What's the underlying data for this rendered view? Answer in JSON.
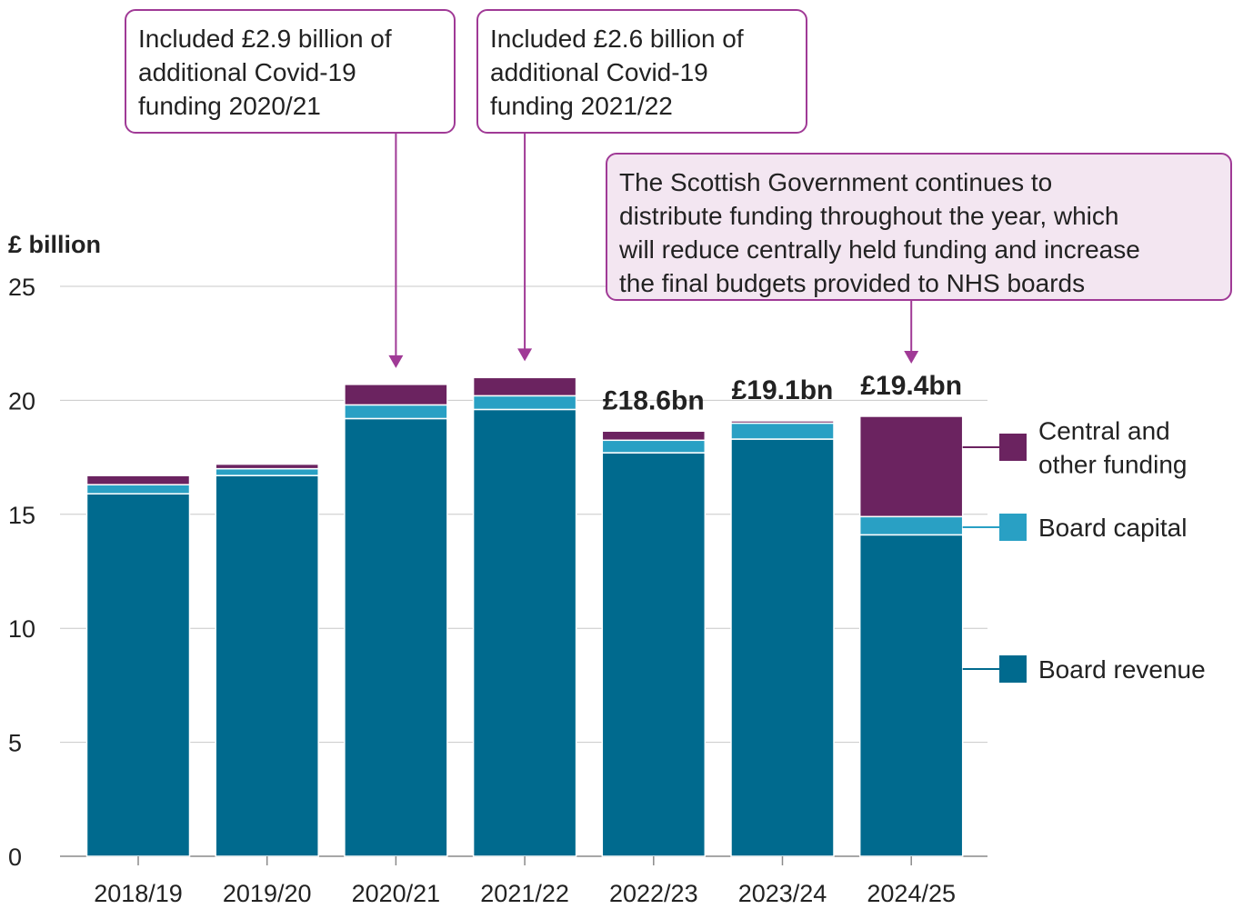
{
  "chart_data": {
    "type": "bar",
    "stacked": true,
    "ylabel": "£ billion",
    "ylim": [
      0,
      25
    ],
    "yticks": [
      0,
      5,
      10,
      15,
      20,
      25
    ],
    "grid": true,
    "legend_position": "right",
    "categories": [
      "2018/19",
      "2019/20",
      "2020/21",
      "2021/22",
      "2022/23",
      "2023/24",
      "2024/25"
    ],
    "series": [
      {
        "name": "Board revenue",
        "values": [
          15.9,
          16.7,
          19.2,
          19.6,
          17.7,
          18.3,
          14.1
        ]
      },
      {
        "name": "Board capital",
        "values": [
          0.4,
          0.3,
          0.6,
          0.6,
          0.55,
          0.7,
          0.8
        ]
      },
      {
        "name": "Central and other funding",
        "values": [
          0.4,
          0.2,
          0.9,
          0.8,
          0.4,
          0.1,
          4.4
        ]
      }
    ],
    "total_labels": [
      {
        "category": "2022/23",
        "text": "£18.6bn"
      },
      {
        "category": "2023/24",
        "text": "£19.1bn"
      },
      {
        "category": "2024/25",
        "text": "£19.4bn"
      }
    ],
    "annotations": [
      {
        "category": "2020/21",
        "lines": [
          "Included £2.9 billion of",
          "additional Covid-19",
          "funding 2020/21"
        ]
      },
      {
        "category": "2021/22",
        "lines": [
          "Included £2.6 billion of",
          "additional Covid-19",
          "funding 2021/22"
        ]
      },
      {
        "category": "2024/25",
        "lines": [
          "The Scottish Government continues to",
          "distribute funding throughout the year, which",
          "will reduce centrally held funding and increase",
          "the final budgets provided to NHS boards"
        ]
      }
    ],
    "legend": [
      {
        "series": "Central and other funding",
        "lines": [
          "Central and",
          "other funding"
        ]
      },
      {
        "series": "Board capital",
        "lines": [
          "Board capital"
        ]
      },
      {
        "series": "Board revenue",
        "lines": [
          "Board revenue"
        ]
      }
    ],
    "colors": {
      "Board revenue": "#006a8e",
      "Board capital": "#29a0c4",
      "Central and other funding": "#6b2360",
      "annotation_border": "#a03a96",
      "annotation_fill": "#f3e6f1",
      "gridline": "#c8c8c8"
    }
  }
}
